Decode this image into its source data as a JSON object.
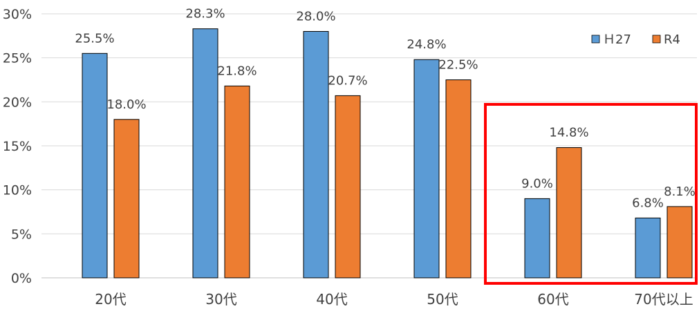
{
  "chart_data": {
    "type": "bar",
    "categories": [
      "20代",
      "30代",
      "40代",
      "50代",
      "60代",
      "70代以上"
    ],
    "series": [
      {
        "name": "H27",
        "legend_label": "Ｈ27",
        "color": "#5B9BD5",
        "values": [
          25.5,
          28.3,
          28.0,
          24.8,
          9.0,
          6.8
        ],
        "labels": [
          "25.5%",
          "28.3%",
          "28.0%",
          "24.8%",
          "9.0%",
          "6.8%"
        ]
      },
      {
        "name": "R4",
        "legend_label": "R4",
        "color": "#ED7D31",
        "values": [
          18.0,
          21.8,
          20.7,
          22.5,
          14.8,
          8.1
        ],
        "labels": [
          "18.0%",
          "21.8%",
          "20.7%",
          "22.5%",
          "14.8%",
          "8.1%"
        ]
      }
    ],
    "y_ticks": [
      "0%",
      "5%",
      "10%",
      "15%",
      "20%",
      "25%",
      "30%"
    ],
    "ylim": [
      0,
      30
    ],
    "grid": true,
    "legend_position": "top-right",
    "highlight": {
      "categories": [
        "60代",
        "70代以上"
      ],
      "color": "#FF0000"
    }
  }
}
